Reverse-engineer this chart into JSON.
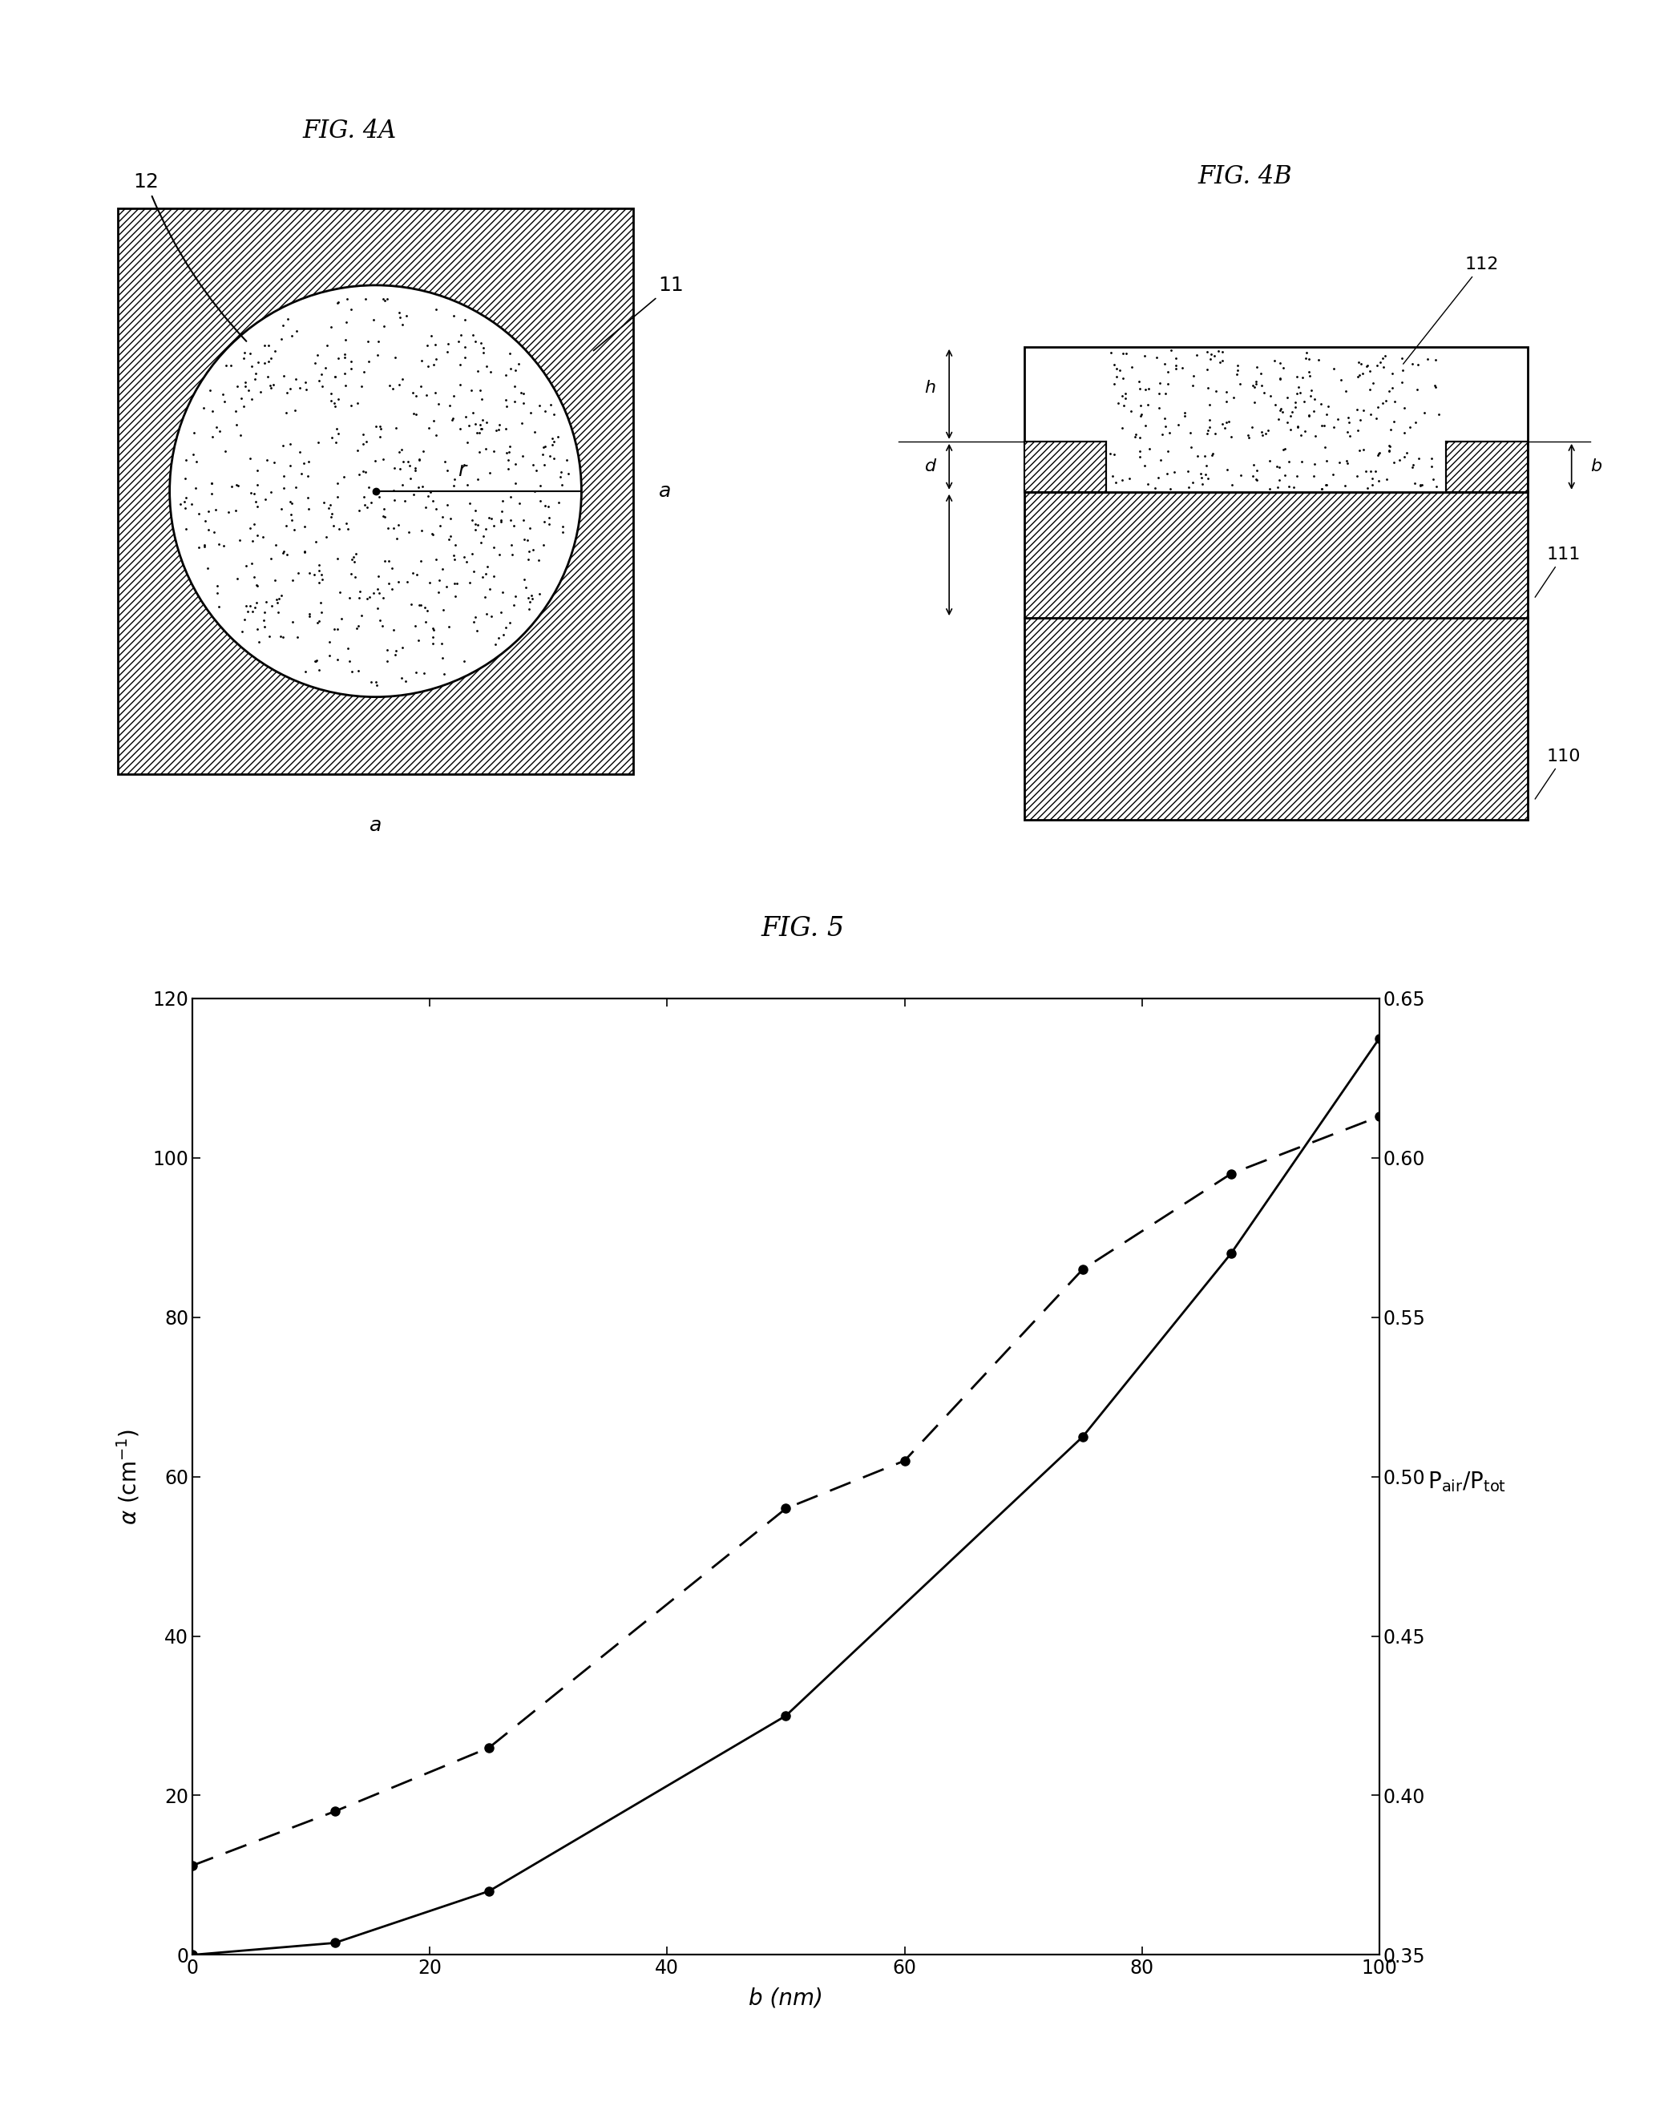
{
  "fig4a_title": "FIG. 4A",
  "fig4b_title": "FIG. 4B",
  "fig5_title": "FIG. 5",
  "solid_x": [
    0,
    12,
    25,
    50,
    75,
    87.5,
    100
  ],
  "solid_y": [
    0,
    1.5,
    8,
    30,
    65,
    88,
    115
  ],
  "dashed_x": [
    0,
    12,
    25,
    50,
    60,
    75,
    87.5,
    100
  ],
  "dashed_y": [
    0.378,
    0.395,
    0.415,
    0.49,
    0.505,
    0.565,
    0.595,
    0.613
  ],
  "xlim": [
    0,
    100
  ],
  "ylim_left": [
    0,
    120
  ],
  "ylim_right": [
    0.35,
    0.65
  ],
  "xlabel": "b (nm)",
  "yticks_left": [
    0,
    20,
    40,
    60,
    80,
    100,
    120
  ],
  "yticks_right": [
    0.35,
    0.4,
    0.45,
    0.5,
    0.55,
    0.6,
    0.65
  ],
  "xticks": [
    0,
    20,
    40,
    60,
    80,
    100
  ],
  "bg_color": "#ffffff"
}
